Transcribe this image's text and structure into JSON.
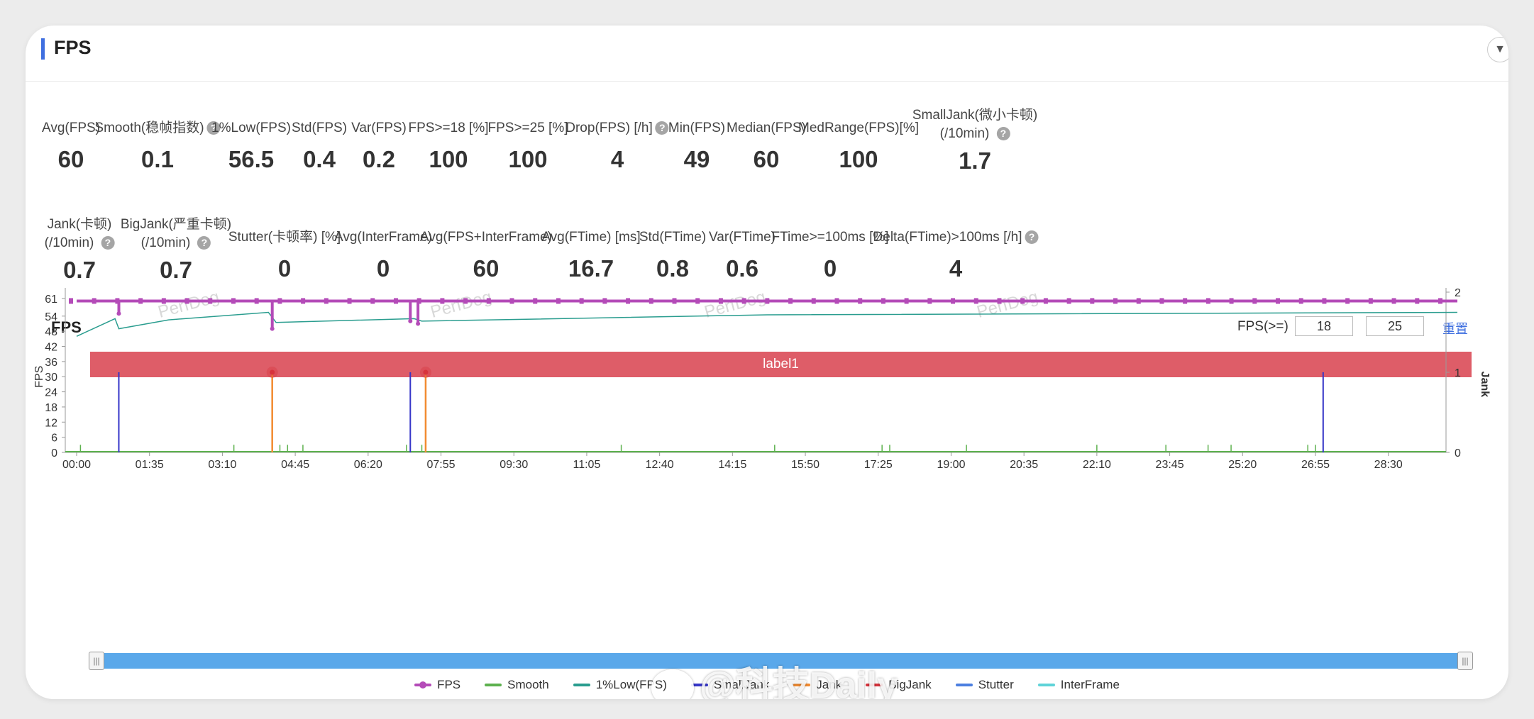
{
  "panel": {
    "title": "FPS",
    "collapse_icon": "▼"
  },
  "metrics_row1": [
    {
      "label": "Avg(FPS)",
      "value": "60",
      "help": false
    },
    {
      "label": "Smooth(稳帧指数)",
      "value": "0.1",
      "help": true
    },
    {
      "label": "1%Low(FPS)",
      "value": "56.5",
      "help": false
    },
    {
      "label": "Std(FPS)",
      "value": "0.4",
      "help": false
    },
    {
      "label": "Var(FPS)",
      "value": "0.2",
      "help": false
    },
    {
      "label": "FPS>=18 [%]",
      "value": "100",
      "help": false
    },
    {
      "label": "FPS>=25 [%]",
      "value": "100",
      "help": false
    },
    {
      "label": "Drop(FPS) [/h]",
      "value": "4",
      "help": true
    },
    {
      "label": "Min(FPS)",
      "value": "49",
      "help": false
    },
    {
      "label": "Median(FPS)",
      "value": "60",
      "help": false
    },
    {
      "label": "MedRange(FPS)[%]",
      "value": "100",
      "help": false
    },
    {
      "label": "SmallJank(微小卡顿)",
      "label2": "(/10min)",
      "value": "1.7",
      "help": true
    }
  ],
  "metrics_row2": [
    {
      "label": "Jank(卡顿)",
      "label2": "(/10min)",
      "value": "0.7",
      "help": true
    },
    {
      "label": "BigJank(严重卡顿)",
      "label2": "(/10min)",
      "value": "0.7",
      "help": true
    },
    {
      "label": "Stutter(卡顿率) [%]",
      "value": "0",
      "help": false
    },
    {
      "label": "Avg(InterFrame)",
      "value": "0",
      "help": false
    },
    {
      "label": "Avg(FPS+InterFrame)",
      "value": "60",
      "help": false
    },
    {
      "label": "Avg(FTime) [ms]",
      "value": "16.7",
      "help": false
    },
    {
      "label": "Std(FTime)",
      "value": "0.8",
      "help": false
    },
    {
      "label": "Var(FTime)",
      "value": "0.6",
      "help": false
    },
    {
      "label": "FTime>=100ms [%]",
      "value": "0",
      "help": false
    },
    {
      "label": "Delta(FTime)>100ms [/h]",
      "value": "4",
      "help": true
    }
  ],
  "chart_header": {
    "title": "FPS",
    "fps_filter_label": "FPS(>=)",
    "fps_filter_1": "18",
    "fps_filter_2": "25",
    "reset": "重置"
  },
  "label_band": "label1",
  "watermark": "PerfDog",
  "weibo_watermark": "@科技Daily",
  "chart_data": {
    "type": "line",
    "ylabel": "FPS",
    "y2label": "Jank",
    "yticks": [
      0,
      6,
      12,
      18,
      24,
      30,
      36,
      42,
      48,
      54,
      61
    ],
    "y2ticks": [
      0,
      1,
      2
    ],
    "ylim": [
      0,
      63.5
    ],
    "y2lim": [
      0,
      2
    ],
    "xlim": [
      "00:00",
      "30:00"
    ],
    "xticks": [
      "00:00",
      "01:35",
      "03:10",
      "04:45",
      "06:20",
      "07:55",
      "09:30",
      "11:05",
      "12:40",
      "14:15",
      "15:50",
      "17:25",
      "19:00",
      "20:35",
      "22:10",
      "23:45",
      "25:20",
      "26:55",
      "28:30"
    ],
    "series": [
      {
        "name": "FPS",
        "color": "#b44bb8",
        "baseline": 60,
        "dips": [
          [
            "00:55",
            55
          ],
          [
            "04:15",
            49
          ],
          [
            "07:15",
            52
          ],
          [
            "07:25",
            51
          ]
        ]
      },
      {
        "name": "Smooth",
        "color": "#5db14e",
        "spikes": [
          "00:05",
          "03:25",
          "04:15",
          "04:25",
          "04:35",
          "04:55",
          "07:10",
          "07:30",
          "11:50",
          "15:10",
          "17:30",
          "17:40",
          "19:20",
          "22:10",
          "23:40",
          "24:35",
          "25:05",
          "26:45",
          "26:55",
          "27:05"
        ]
      },
      {
        "name": "1%Low(FPS)",
        "color": "#2a9d8f",
        "points": [
          [
            "00:00",
            46
          ],
          [
            "00:50",
            53
          ],
          [
            "00:55",
            49
          ],
          [
            "02:00",
            52.5
          ],
          [
            "04:10",
            55.5
          ],
          [
            "04:20",
            51.5
          ],
          [
            "07:20",
            53.0
          ],
          [
            "07:30",
            52.0
          ],
          [
            "15:00",
            54.5
          ],
          [
            "30:00",
            55.5
          ]
        ]
      },
      {
        "name": "SmallJank",
        "color": "#3636c8",
        "spikes": [
          [
            "00:55",
            1.0
          ],
          [
            "07:15",
            1.0
          ],
          [
            "27:05",
            1.0
          ]
        ]
      },
      {
        "name": "Jank",
        "color": "#f28b30",
        "spikes": [
          [
            "04:15",
            1.0
          ],
          [
            "07:35",
            1.0
          ]
        ]
      },
      {
        "name": "BigJank",
        "color": "#d7333c",
        "markers": [
          "04:15",
          "07:35"
        ]
      },
      {
        "name": "Stutter",
        "color": "#4c7fe0"
      },
      {
        "name": "InterFrame",
        "color": "#5fd3d8"
      }
    ]
  },
  "legend_icons": {
    "colors": {
      "FPS": "#b44bb8",
      "Smooth": "#5db14e",
      "1%Low(FPS)": "#2a9d8f",
      "SmallJank": "#3636c8",
      "Jank": "#f28b30",
      "BigJank": "#d7333c",
      "Stutter": "#4c7fe0",
      "InterFrame": "#5fd3d8"
    }
  },
  "scroll_handle_icon": "grip-icon",
  "help_icon_glyph": "?"
}
